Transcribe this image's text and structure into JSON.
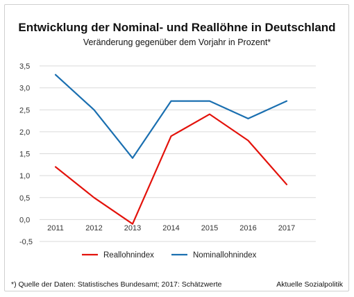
{
  "chart_data": {
    "type": "line",
    "title": "Entwicklung der Nominal- und Reallöhne in Deutschland",
    "subtitle": "Veränderung gegenüber dem Vorjahr in Prozent*",
    "categories": [
      "2011",
      "2012",
      "2013",
      "2014",
      "2015",
      "2016",
      "2017"
    ],
    "ylim": [
      -0.5,
      3.5
    ],
    "yticks": [
      -0.5,
      0.0,
      0.5,
      1.0,
      1.5,
      2.0,
      2.5,
      3.0,
      3.5
    ],
    "ytick_labels": [
      "-0,5",
      "0,0",
      "0,5",
      "1,0",
      "1,5",
      "2,0",
      "2,5",
      "3,0",
      "3,5"
    ],
    "grid": true,
    "legend_position": "bottom",
    "series": [
      {
        "name": "Reallohnindex",
        "color": "#e3120b",
        "values": [
          1.2,
          0.5,
          -0.1,
          1.9,
          2.4,
          1.8,
          0.8
        ]
      },
      {
        "name": "Nominallohnindex",
        "color": "#1a6fb0",
        "values": [
          3.3,
          2.5,
          1.4,
          2.7,
          2.7,
          2.3,
          2.7
        ]
      }
    ],
    "footnote": "*) Quelle der Daten: Statistisches Bundesamt; 2017: Schätzwerte",
    "source": "Aktuelle Sozialpolitik"
  }
}
